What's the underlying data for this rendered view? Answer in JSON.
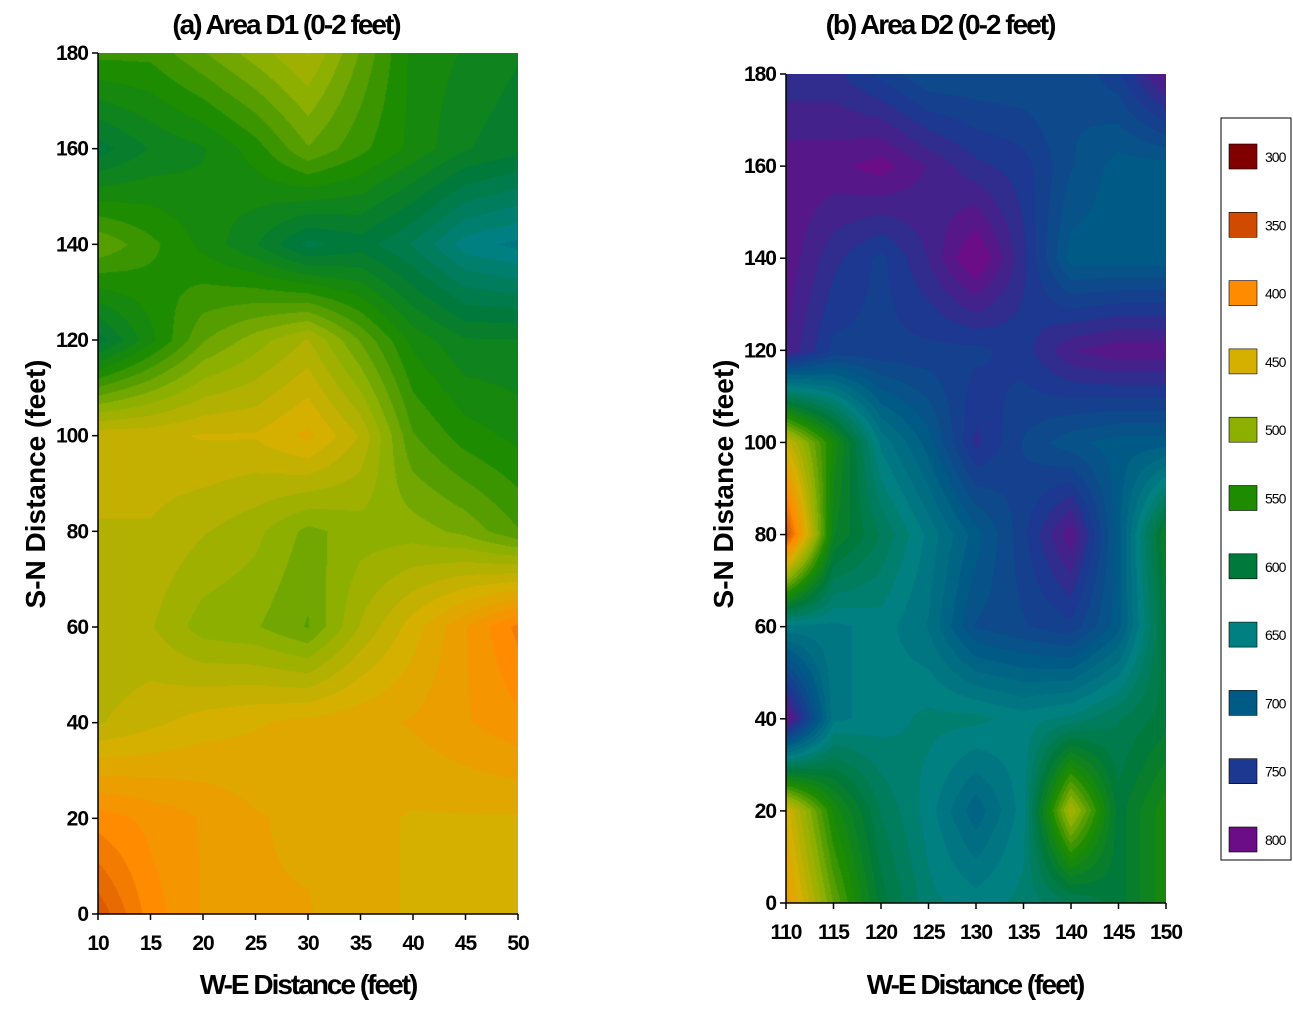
{
  "chart_data": [
    {
      "type": "heatmap",
      "title": "(a) Area D1 (0-2 feet)",
      "xlabel": "W-E Distance (feet)",
      "ylabel": "S-N Distance (feet)",
      "xlim": [
        10,
        50
      ],
      "ylim": [
        0,
        180
      ],
      "x_ticks": [
        "10",
        "15",
        "20",
        "25",
        "30",
        "35",
        "40",
        "45",
        "50"
      ],
      "y_ticks": [
        "0",
        "20",
        "40",
        "60",
        "80",
        "100",
        "120",
        "140",
        "160",
        "180"
      ],
      "x": [
        10,
        15,
        20,
        25,
        30,
        35,
        40,
        45,
        50
      ],
      "y": [
        0,
        20,
        40,
        60,
        80,
        100,
        120,
        140,
        160,
        180
      ],
      "z": [
        [
          360,
          400,
          420,
          430,
          430,
          440,
          445,
          450,
          455
        ],
        [
          400,
          410,
          420,
          430,
          435,
          440,
          445,
          445,
          445
        ],
        [
          470,
          460,
          450,
          445,
          440,
          435,
          430,
          420,
          410
        ],
        [
          480,
          480,
          500,
          505,
          520,
          480,
          450,
          420,
          390
        ],
        [
          470,
          470,
          480,
          490,
          510,
          500,
          500,
          510,
          530
        ],
        [
          460,
          460,
          455,
          455,
          440,
          470,
          530,
          550,
          560
        ],
        [
          600,
          560,
          520,
          500,
          480,
          520,
          560,
          580,
          580
        ],
        [
          520,
          540,
          560,
          580,
          610,
          600,
          620,
          650,
          660
        ],
        [
          600,
          580,
          570,
          550,
          520,
          540,
          560,
          580,
          590
        ],
        [
          540,
          540,
          520,
          500,
          480,
          520,
          560,
          570,
          580
        ]
      ]
    },
    {
      "type": "heatmap",
      "title": "(b) Area D2 (0-2 feet)",
      "xlabel": "W-E Distance (feet)",
      "ylabel": "S-N Distance (feet)",
      "xlim": [
        110,
        150
      ],
      "ylim": [
        0,
        180
      ],
      "x_ticks": [
        "110",
        "115",
        "120",
        "125",
        "130",
        "135",
        "140",
        "145",
        "150"
      ],
      "y_ticks": [
        "0",
        "20",
        "40",
        "60",
        "80",
        "100",
        "120",
        "140",
        "160",
        "180"
      ],
      "x": [
        110,
        115,
        120,
        125,
        130,
        135,
        140,
        145,
        150
      ],
      "y": [
        0,
        20,
        40,
        60,
        80,
        100,
        120,
        140,
        160,
        180
      ],
      "z": [
        [
          420,
          520,
          600,
          640,
          650,
          640,
          620,
          600,
          560
        ],
        [
          450,
          560,
          620,
          650,
          690,
          650,
          480,
          600,
          560
        ],
        [
          800,
          660,
          650,
          640,
          640,
          650,
          640,
          620,
          600
        ],
        [
          660,
          660,
          650,
          670,
          720,
          730,
          740,
          700,
          600
        ],
        [
          350,
          580,
          620,
          660,
          700,
          740,
          790,
          700,
          580
        ],
        [
          460,
          560,
          660,
          700,
          760,
          730,
          710,
          700,
          700
        ],
        [
          780,
          740,
          740,
          740,
          740,
          750,
          780,
          790,
          790
        ],
        [
          790,
          760,
          740,
          770,
          810,
          760,
          700,
          700,
          700
        ],
        [
          790,
          790,
          800,
          780,
          760,
          750,
          720,
          700,
          700
        ],
        [
          760,
          760,
          740,
          720,
          720,
          720,
          720,
          740,
          790
        ]
      ]
    }
  ],
  "legend": {
    "items": [
      {
        "label": "300",
        "color": "#800000"
      },
      {
        "label": "350",
        "color": "#D04A02"
      },
      {
        "label": "400",
        "color": "#FF8C00"
      },
      {
        "label": "450",
        "color": "#D6B000"
      },
      {
        "label": "500",
        "color": "#8DB000"
      },
      {
        "label": "550",
        "color": "#1E8C00"
      },
      {
        "label": "600",
        "color": "#007A3A"
      },
      {
        "label": "650",
        "color": "#008080"
      },
      {
        "label": "700",
        "color": "#005A86"
      },
      {
        "label": "750",
        "color": "#1C3890"
      },
      {
        "label": "800",
        "color": "#6A0D86"
      }
    ]
  }
}
